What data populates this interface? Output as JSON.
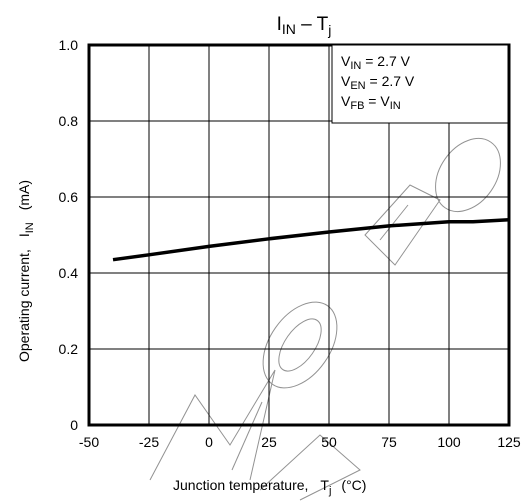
{
  "chart_data": {
    "type": "line",
    "title": {
      "main": "I",
      "sub": "IN",
      "dash": " – T",
      "sub2": "j"
    },
    "xlabel": {
      "text": "Junction temperature,",
      "sym": "T",
      "sub": "j",
      "unit": "(°C)"
    },
    "ylabel": {
      "text": "Operating current,",
      "sym": "I",
      "sub": "IN",
      "unit": "(mA)"
    },
    "xlim": [
      -50,
      125
    ],
    "ylim": [
      0,
      1.0
    ],
    "xticks": [
      -50,
      -25,
      0,
      25,
      50,
      75,
      100,
      125
    ],
    "xtick_labels": [
      "-50",
      "-25",
      "0",
      "25",
      "50",
      "75",
      "100",
      "125"
    ],
    "yticks": [
      0,
      0.2,
      0.4,
      0.6,
      0.8,
      1.0
    ],
    "ytick_labels": [
      "0",
      "0.2",
      "0.4",
      "0.6",
      "0.8",
      "1.0"
    ],
    "grid": true,
    "conditions": [
      {
        "sym": "V",
        "sub": "IN",
        "rest": " = 2.7 V"
      },
      {
        "sym": "V",
        "sub": "EN",
        "rest": " = 2.7 V"
      },
      {
        "sym": "V",
        "sub": "FB",
        "rest": " = V",
        "sub2": "IN"
      }
    ],
    "series": [
      {
        "x": [
          -40,
          -25,
          0,
          25,
          50,
          75,
          100,
          110,
          125
        ],
        "y": [
          0.435,
          0.448,
          0.47,
          0.49,
          0.508,
          0.524,
          0.535,
          0.535,
          0.54
        ]
      }
    ],
    "watermark": "Model"
  }
}
